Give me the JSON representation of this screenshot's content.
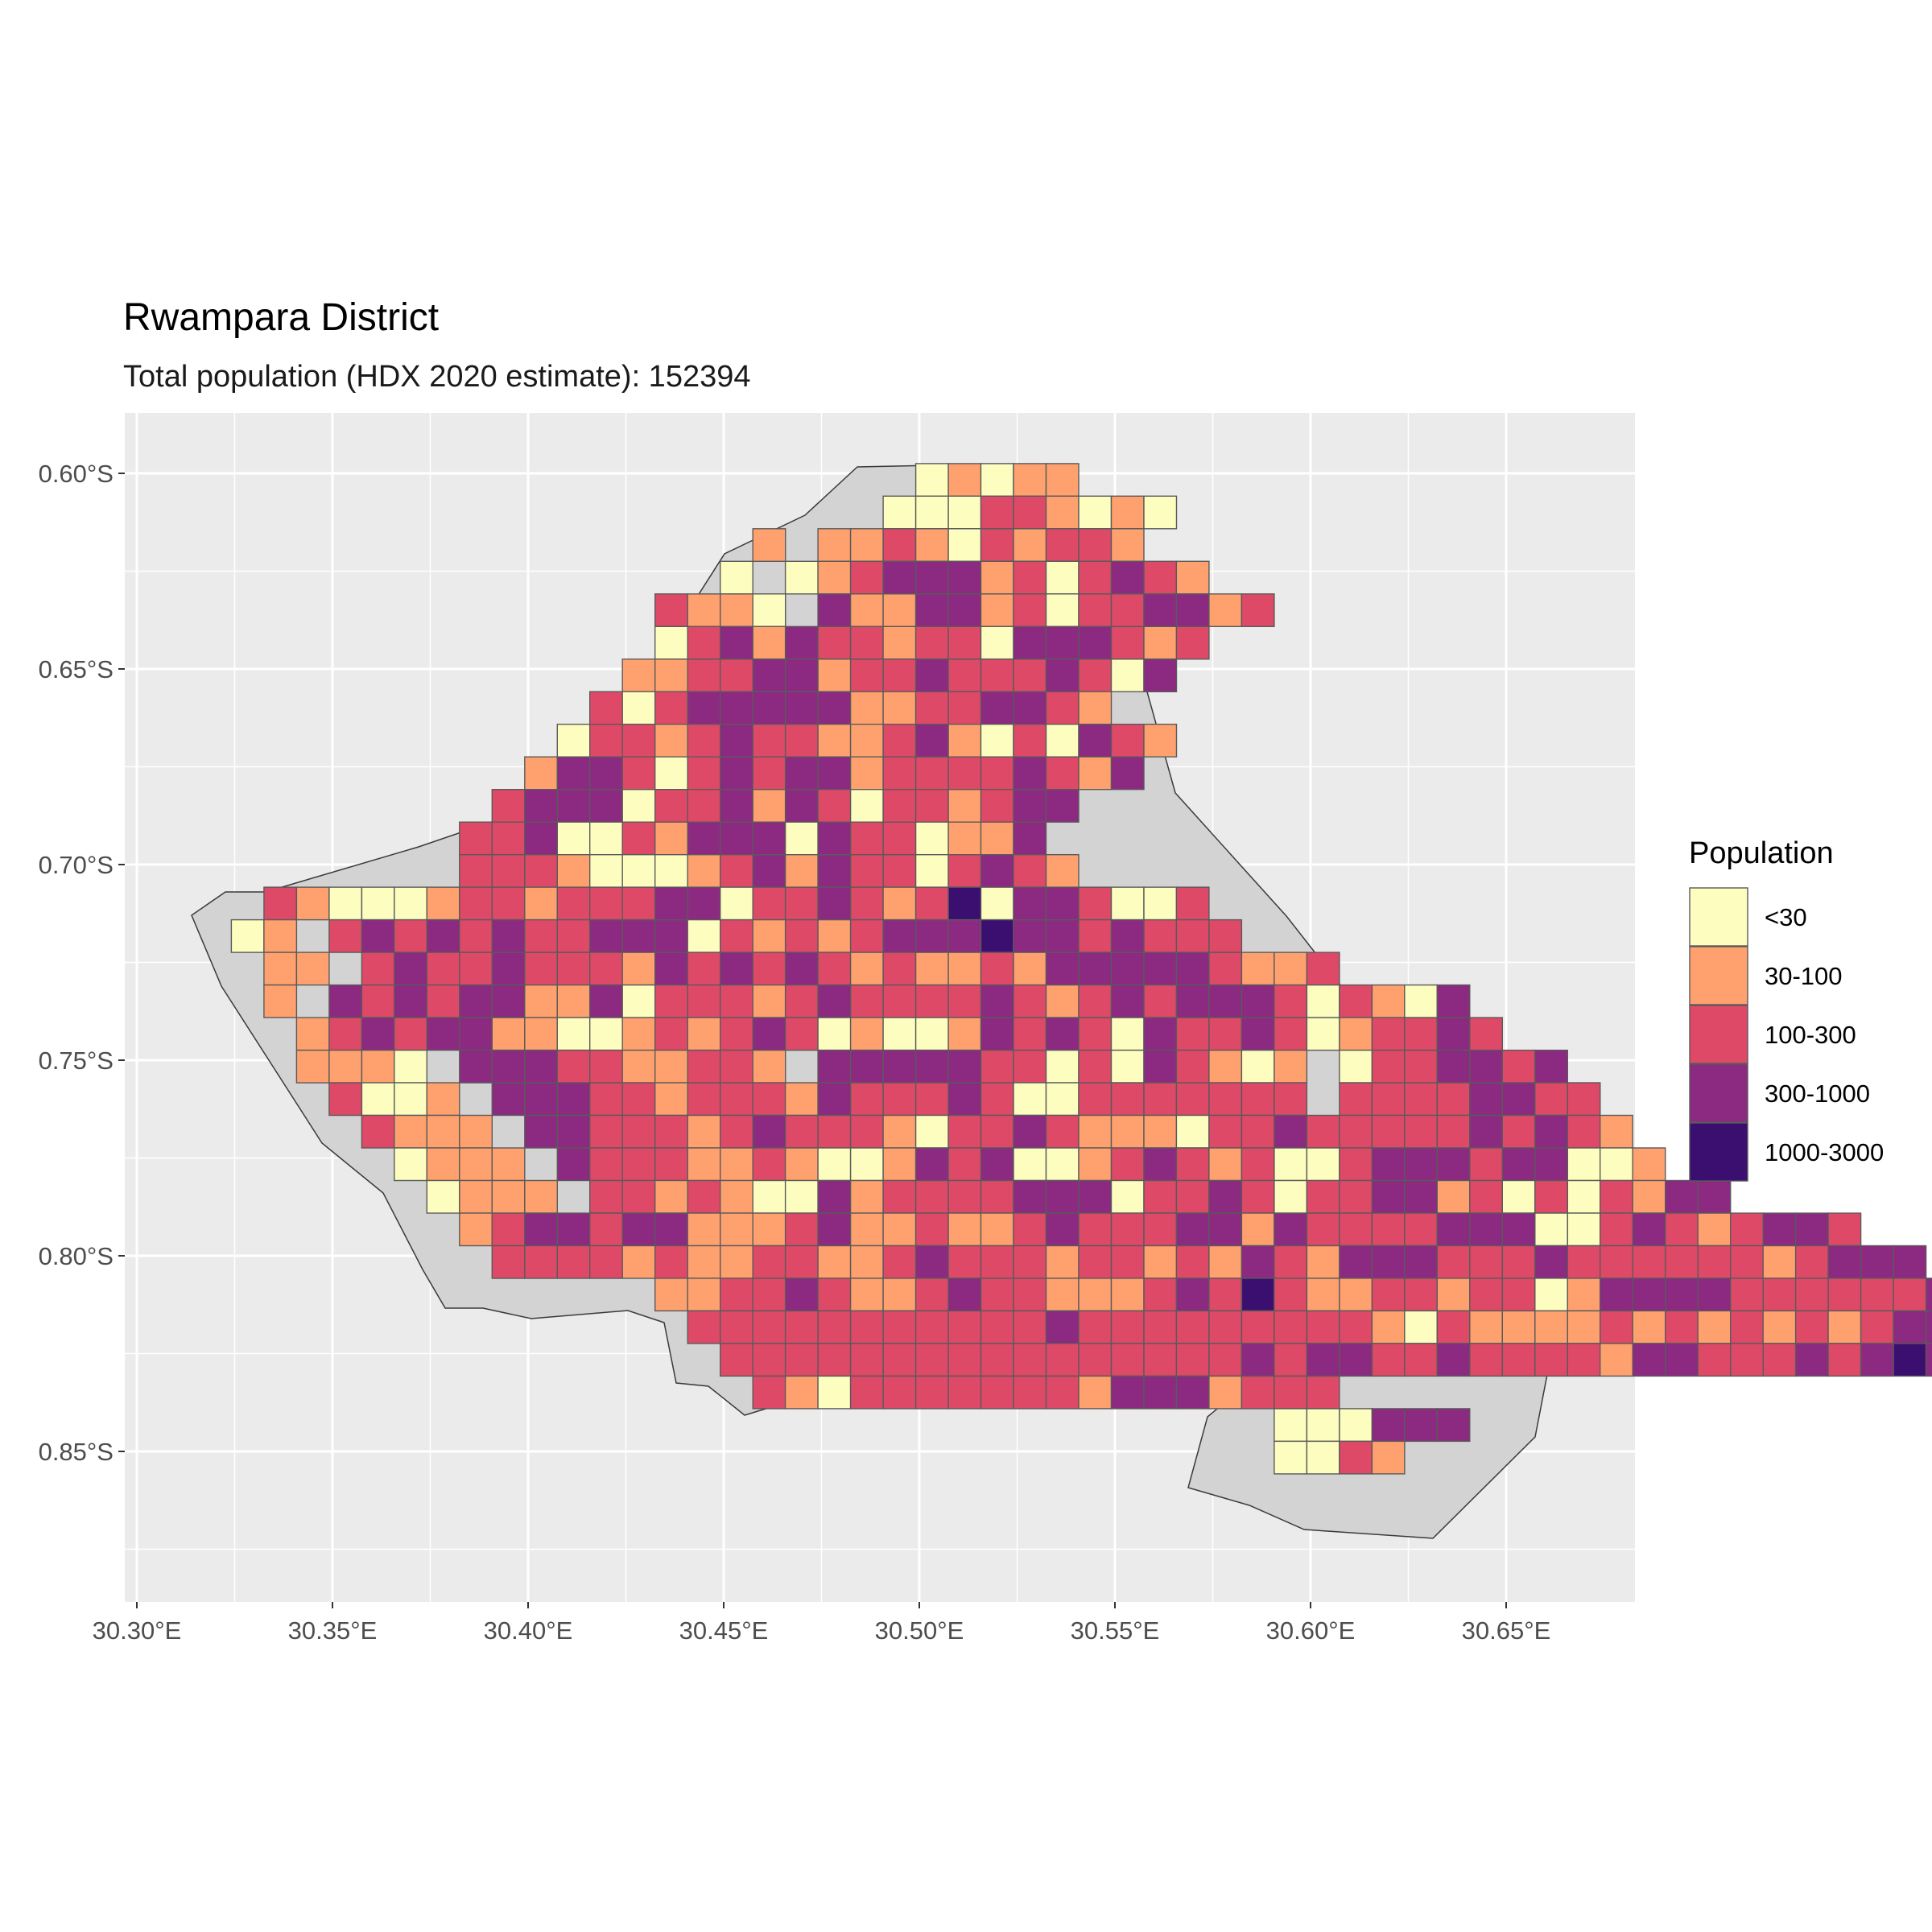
{
  "title": "Rwampara District",
  "subtitle": "Total population (HDX 2020 estimate): 152394",
  "legend": {
    "title": "Population",
    "items": [
      {
        "label": "<30",
        "color": "#FCFDBF"
      },
      {
        "label": "30-100",
        "color": "#FEA16E"
      },
      {
        "label": "100-300",
        "color": "#DE4968"
      },
      {
        "label": "300-1000",
        "color": "#8C2981"
      },
      {
        "label": "1000-3000",
        "color": "#3B0F70"
      }
    ]
  },
  "axes": {
    "x_ticks": [
      "30.30°E",
      "30.35°E",
      "30.40°E",
      "30.45°E",
      "30.50°E",
      "30.55°E",
      "30.60°E",
      "30.65°E"
    ],
    "y_ticks": [
      "0.60°S",
      "0.65°S",
      "0.70°S",
      "0.75°S",
      "0.80°S",
      "0.85°S"
    ]
  },
  "colors": {
    "panel_background": "#EBEBEB",
    "grid": "#FFFFFF",
    "district_fill": "#D3D3D3",
    "cell_border": "#5A5A5A"
  },
  "chart_data": {
    "type": "heatmap",
    "grid_origin_lon": 30.3075,
    "grid_origin_lat": -0.5975,
    "cell_size_deg": 0.00833,
    "encoding": "rows[r] lists the population class index (0='<30', 1='30-100', 2='100-300', 3='300-1000', 4='1000-3000') of each cell in row r, north to south; row r starts at rows_start_col[r]; '-' = no population cell.",
    "rows_start_col": [
      23,
      22,
      18,
      17,
      15,
      15,
      14,
      13,
      12,
      11,
      10,
      9,
      9,
      3,
      2,
      3,
      3,
      4,
      4,
      5,
      6,
      7,
      8,
      9,
      10,
      15,
      16,
      17,
      18,
      34,
      34
    ],
    "rows": [
      "01011",
      "000221010",
      "1-1121021221",
      "0-0123331202321",
      "2110-31133120223312",
      "02313221220333212",
      "11223312232223203",
      "2023333311223321",
      "0221232211231020321",
      "1332023233122223213",
      "233302231320221233",
      "223002133303220113",
      "2221000123132202321",
      "21000122122233022321240332002",
      "01-2323232233302121233343323222",
      "11-232232221323232121121333332112",
      "1-32323311302221232222321232333202103",
      "1232331100121232010013232032232012232",
      "1110-3332211221-333332202032101-0223323",
      "2001-3332212221322232002222222-22223322",
      "2111-3322212322210223211102232222232321",
      "0111-3222112100132300123212002333233001",
      "0111-22121003122223330223202233120202133",
      "1233233111231121123222331322223330023212332",
      "22221211221123222122121321333222322222212333",
      "11223211232211123242112212201333322222232233",
      "2222222222232222222221021111212121212333321",
      "222222222222222232332232222133222323432",
      "210222222213331222",
      "000333",
      "0021"
    ]
  }
}
